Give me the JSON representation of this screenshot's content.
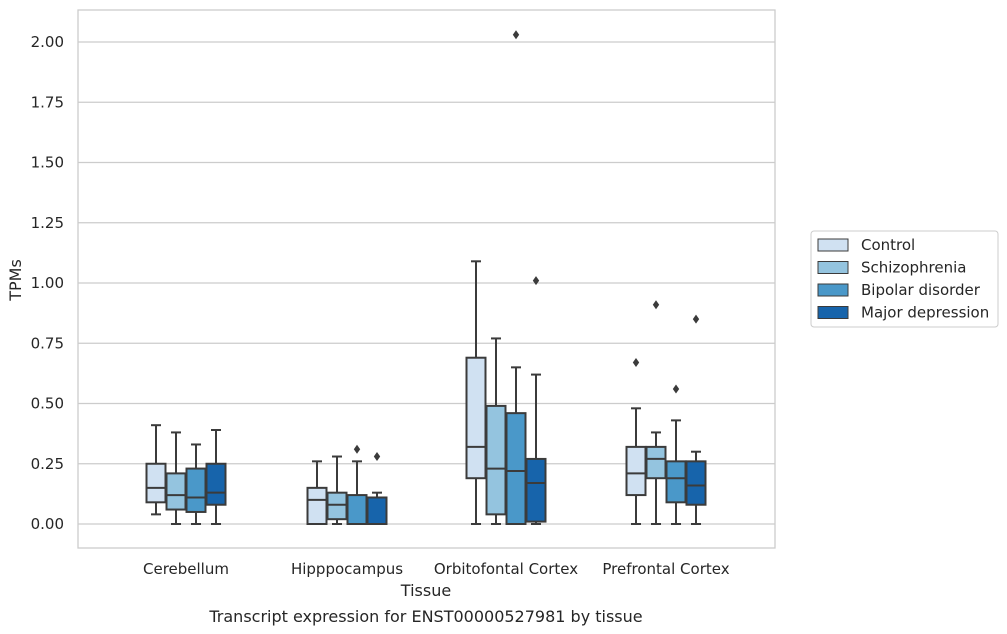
{
  "chart_data": {
    "type": "box",
    "title": "",
    "caption": "Transcript expression for ENST00000527981 by tissue",
    "xlabel": "Tissue",
    "ylabel": "TPMs",
    "ylim": [
      -0.1,
      2.14
    ],
    "yticks": [
      0.0,
      0.25,
      0.5,
      0.75,
      1.0,
      1.25,
      1.5,
      1.75,
      2.0
    ],
    "ytick_labels": [
      "0.00",
      "0.25",
      "0.50",
      "0.75",
      "1.00",
      "1.25",
      "1.50",
      "1.75",
      "2.00"
    ],
    "grid": true,
    "legend_position": "right, outside plot",
    "categories": [
      "Cerebellum",
      "Hipppocampus",
      "Orbitofontal Cortex",
      "Prefrontal Cortex"
    ],
    "series": [
      {
        "name": "Control",
        "color": "#d0e1f2",
        "boxes": [
          {
            "whisker_low": 0.04,
            "q1": 0.09,
            "median": 0.15,
            "q3": 0.25,
            "whisker_high": 0.41,
            "outliers": []
          },
          {
            "whisker_low": 0.0,
            "q1": 0.0,
            "median": 0.1,
            "q3": 0.15,
            "whisker_high": 0.26,
            "outliers": []
          },
          {
            "whisker_low": 0.0,
            "q1": 0.19,
            "median": 0.32,
            "q3": 0.69,
            "whisker_high": 1.09,
            "outliers": []
          },
          {
            "whisker_low": 0.0,
            "q1": 0.12,
            "median": 0.21,
            "q3": 0.32,
            "whisker_high": 0.48,
            "outliers": [
              0.67
            ]
          }
        ]
      },
      {
        "name": "Schizophrenia",
        "color": "#94c4df",
        "boxes": [
          {
            "whisker_low": 0.0,
            "q1": 0.06,
            "median": 0.12,
            "q3": 0.21,
            "whisker_high": 0.38,
            "outliers": []
          },
          {
            "whisker_low": 0.0,
            "q1": 0.02,
            "median": 0.08,
            "q3": 0.13,
            "whisker_high": 0.28,
            "outliers": []
          },
          {
            "whisker_low": 0.0,
            "q1": 0.04,
            "median": 0.23,
            "q3": 0.49,
            "whisker_high": 0.77,
            "outliers": []
          },
          {
            "whisker_low": 0.0,
            "q1": 0.19,
            "median": 0.27,
            "q3": 0.32,
            "whisker_high": 0.38,
            "outliers": [
              0.91
            ]
          }
        ]
      },
      {
        "name": "Bipolar disorder",
        "color": "#4a98c9",
        "boxes": [
          {
            "whisker_low": 0.0,
            "q1": 0.05,
            "median": 0.11,
            "q3": 0.23,
            "whisker_high": 0.33,
            "outliers": []
          },
          {
            "whisker_low": 0.0,
            "q1": 0.0,
            "median": 0.0,
            "q3": 0.12,
            "whisker_high": 0.26,
            "outliers": [
              0.31
            ]
          },
          {
            "whisker_low": 0.0,
            "q1": 0.0,
            "median": 0.22,
            "q3": 0.46,
            "whisker_high": 0.65,
            "outliers": [
              2.03
            ]
          },
          {
            "whisker_low": 0.0,
            "q1": 0.09,
            "median": 0.19,
            "q3": 0.26,
            "whisker_high": 0.43,
            "outliers": [
              0.56
            ]
          }
        ]
      },
      {
        "name": "Major depression",
        "color": "#1764ab",
        "boxes": [
          {
            "whisker_low": 0.0,
            "q1": 0.08,
            "median": 0.13,
            "q3": 0.25,
            "whisker_high": 0.39,
            "outliers": []
          },
          {
            "whisker_low": 0.0,
            "q1": 0.0,
            "median": 0.0,
            "q3": 0.11,
            "whisker_high": 0.13,
            "outliers": [
              0.28
            ]
          },
          {
            "whisker_low": 0.0,
            "q1": 0.01,
            "median": 0.17,
            "q3": 0.27,
            "whisker_high": 0.62,
            "outliers": [
              1.01
            ]
          },
          {
            "whisker_low": 0.0,
            "q1": 0.08,
            "median": 0.16,
            "q3": 0.26,
            "whisker_high": 0.3,
            "outliers": [
              0.85
            ]
          }
        ]
      }
    ]
  }
}
